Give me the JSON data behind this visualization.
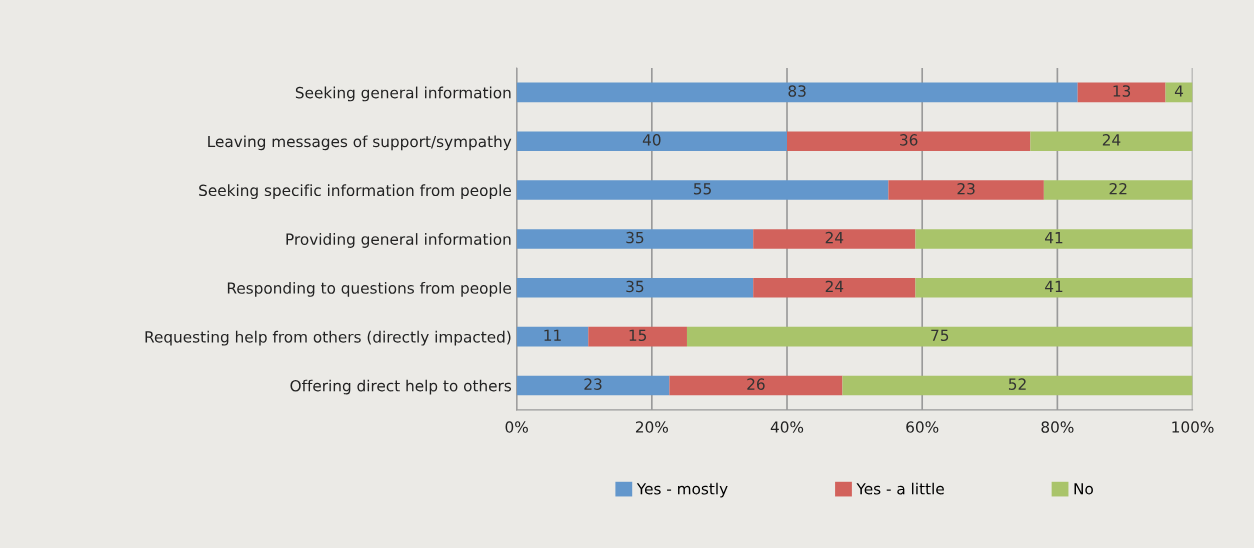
{
  "chart_data": {
    "type": "bar",
    "orientation": "horizontal",
    "stacked": true,
    "categories": [
      "Seeking general information",
      "Leaving messages of support/sympathy",
      "Seeking specific information from people",
      "Providing general information",
      "Responding to questions from people",
      "Requesting help from others (directly impacted)",
      "Offering direct help to others"
    ],
    "series": [
      {
        "name": "Yes - mostly",
        "color": "#6397cc",
        "values": [
          83,
          40,
          55,
          35,
          35,
          10.6,
          22.6
        ],
        "value_labels": [
          "83",
          "40",
          "55",
          "35",
          "35",
          "11",
          "23"
        ]
      },
      {
        "name": "Yes - a little",
        "color": "#d2625c",
        "values": [
          13,
          36,
          23,
          24,
          24,
          14.6,
          25.6
        ],
        "value_labels": [
          "13",
          "36",
          "23",
          "24",
          "24",
          "15",
          "26"
        ]
      },
      {
        "name": "No",
        "color": "#a9c46a",
        "values": [
          4,
          24,
          22,
          41,
          41,
          74.8,
          51.8
        ],
        "value_labels": [
          "4",
          "24",
          "22",
          "41",
          "41",
          "75",
          "52"
        ]
      }
    ],
    "xlim": [
      0,
      100
    ],
    "xticks": [
      {
        "value": 0,
        "label": "0%"
      },
      {
        "value": 20,
        "label": "20%"
      },
      {
        "value": 40,
        "label": "40%"
      },
      {
        "value": 60,
        "label": "60%"
      },
      {
        "value": 80,
        "label": "80%"
      },
      {
        "value": 100,
        "label": "100%"
      }
    ],
    "grid": "x",
    "legend": "bottom"
  }
}
